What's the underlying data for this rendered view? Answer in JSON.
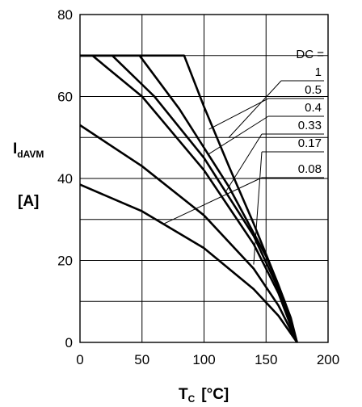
{
  "chart_data": {
    "type": "line",
    "title": "",
    "xlabel": {
      "main": "T",
      "sub": "C",
      "unit": "[°C]"
    },
    "ylabel": {
      "main": "I",
      "sub": "dAVM",
      "unit": "[A]"
    },
    "xlim": [
      0,
      200
    ],
    "ylim": [
      0,
      80
    ],
    "xticks": [
      0,
      50,
      100,
      150,
      200
    ],
    "yticks": [
      0,
      20,
      40,
      60,
      80
    ],
    "x_gridlines": [
      0,
      50,
      100,
      150,
      200
    ],
    "y_gridlines": [
      0,
      10,
      20,
      30,
      40,
      50,
      60,
      70,
      80
    ],
    "grid": true,
    "legend_title": "DC =",
    "series": [
      {
        "name": "1",
        "x": [
          0,
          84,
          100,
          120,
          140,
          160,
          170,
          175
        ],
        "y": [
          70,
          70,
          57.5,
          43,
          29,
          14,
          6,
          0
        ]
      },
      {
        "name": "0.5",
        "x": [
          0,
          48,
          80,
          120,
          150,
          165,
          175
        ],
        "y": [
          70,
          70,
          57,
          38,
          21,
          10,
          0
        ]
      },
      {
        "name": "0.4",
        "x": [
          0,
          26,
          60,
          100,
          140,
          160,
          175
        ],
        "y": [
          70,
          70,
          60,
          45,
          26,
          13,
          0
        ]
      },
      {
        "name": "0.33",
        "x": [
          0,
          10,
          50,
          100,
          140,
          160,
          175
        ],
        "y": [
          70,
          70,
          60,
          42,
          24,
          12,
          0
        ]
      },
      {
        "name": "0.17",
        "x": [
          0,
          50,
          100,
          140,
          160,
          175
        ],
        "y": [
          53,
          43,
          31,
          18,
          9,
          0
        ]
      },
      {
        "name": "0.08",
        "x": [
          0,
          50,
          100,
          140,
          160,
          175
        ],
        "y": [
          38.5,
          32,
          23,
          13,
          6.5,
          0
        ]
      }
    ]
  }
}
